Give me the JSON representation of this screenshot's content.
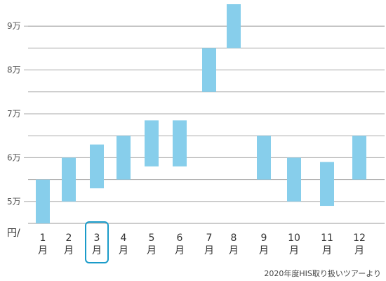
{
  "chart_data": {
    "type": "bar",
    "subtype": "floating-range",
    "categories": [
      {
        "num": "1",
        "unit": "月"
      },
      {
        "num": "2",
        "unit": "月"
      },
      {
        "num": "3",
        "unit": "月"
      },
      {
        "num": "4",
        "unit": "月"
      },
      {
        "num": "5",
        "unit": "月"
      },
      {
        "num": "6",
        "unit": "月"
      },
      {
        "num": "7",
        "unit": "月"
      },
      {
        "num": "8",
        "unit": "月"
      },
      {
        "num": "9",
        "unit": "月"
      },
      {
        "num": "10",
        "unit": "月"
      },
      {
        "num": "11",
        "unit": "月"
      },
      {
        "num": "12",
        "unit": "月"
      }
    ],
    "ranges": [
      [
        45000,
        55000
      ],
      [
        50000,
        60000
      ],
      [
        53000,
        63000
      ],
      [
        55000,
        65000
      ],
      [
        58000,
        68500
      ],
      [
        58000,
        68500
      ],
      [
        75000,
        85000
      ],
      [
        85000,
        95000
      ],
      [
        55000,
        65000
      ],
      [
        50000,
        60000
      ],
      [
        49000,
        59000
      ],
      [
        55000,
        65000
      ]
    ],
    "y_ticks": [
      {
        "value": 50000,
        "label": "5万"
      },
      {
        "value": 60000,
        "label": "6万"
      },
      {
        "value": 70000,
        "label": "7万"
      },
      {
        "value": 80000,
        "label": "8万"
      },
      {
        "value": 90000,
        "label": "9万"
      }
    ],
    "ylim": [
      45000,
      95000
    ],
    "y_unit": "円/",
    "grid": true,
    "bar_color": "#87CEEB",
    "highlight_index": 2,
    "highlight_color": "#1a9bc9",
    "source_note": "2020年度HIS取り扱いツアーより"
  }
}
